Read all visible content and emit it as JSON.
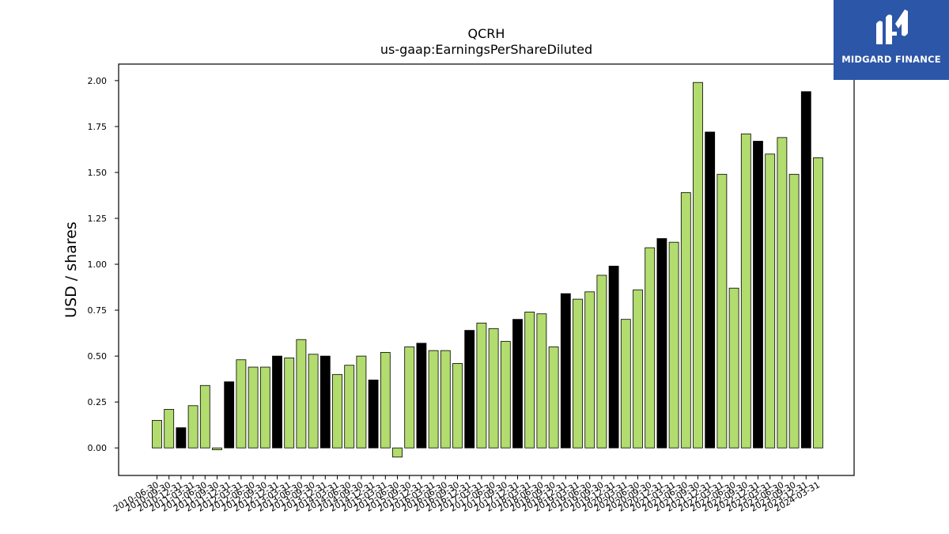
{
  "brand": {
    "name": "MIDGARD FINANCE",
    "logo_icon": "midgard-m-logo",
    "bg_color": "#2c56a8"
  },
  "colors": {
    "bar_default": "#b2dc6e",
    "bar_highlight": "#000000",
    "bar_edge": "#000000"
  },
  "chart_data": {
    "type": "bar",
    "title": "QCRH",
    "subtitle": "us-gaap:EarningsPerShareDiluted",
    "xlabel": "",
    "ylabel": "USD / shares",
    "ylim": [
      -0.15,
      2.09
    ],
    "yticks": [
      "0.00",
      "0.25",
      "0.50",
      "0.75",
      "1.00",
      "1.25",
      "1.50",
      "1.75",
      "2.00"
    ],
    "grid": false,
    "legend": "none",
    "categories": [
      "2010-06-30",
      "2010-09-30",
      "2010-12-31",
      "2011-03-31",
      "2011-06-30",
      "2011-09-30",
      "2011-12-31",
      "2012-03-31",
      "2012-06-30",
      "2012-09-30",
      "2012-12-31",
      "2013-03-31",
      "2013-06-30",
      "2013-09-30",
      "2013-12-31",
      "2014-03-31",
      "2014-06-30",
      "2014-09-30",
      "2014-12-31",
      "2015-03-31",
      "2015-06-30",
      "2015-09-30",
      "2015-12-31",
      "2016-03-31",
      "2016-06-30",
      "2016-09-30",
      "2016-12-31",
      "2017-03-31",
      "2017-06-30",
      "2017-09-30",
      "2017-12-31",
      "2018-03-31",
      "2018-06-30",
      "2018-09-30",
      "2018-12-31",
      "2019-03-31",
      "2019-06-30",
      "2019-09-30",
      "2019-12-31",
      "2020-03-31",
      "2020-06-30",
      "2020-09-30",
      "2020-12-31",
      "2021-03-31",
      "2021-06-30",
      "2021-09-30",
      "2021-12-31",
      "2022-03-31",
      "2022-06-30",
      "2022-09-30",
      "2022-12-31",
      "2023-03-31",
      "2023-06-30",
      "2023-09-30",
      "2023-12-31",
      "2024-03-31"
    ],
    "tick_labels": [
      "2010-06-30",
      "2010-09-30",
      "2010-12-31",
      "2011-03-31",
      "2011-06-30",
      "2011-09-30",
      "2011-12-31",
      "2012-03-31",
      "2012-06-30",
      "2012-09-30",
      "2012-12-31",
      "2013-03-31",
      "2013-06-30",
      "2013-09-30",
      "2013-12-31",
      "2014-03-31",
      "2014-06-30",
      "2014-09-30",
      "2014-12-31",
      "2015-03-31",
      "2015-06-30",
      "2015-09-30",
      "2015-12-31",
      "2016-03-31",
      "2016-06-30",
      "2016-09-30",
      "2016-12-31",
      "2017-03-31",
      "2017-06-30",
      "2017-09-30",
      "2017-12-31",
      "2018-03-31",
      "2018-06-30",
      "2018-09-30",
      "2018-12-31",
      "2019-03-31",
      "2019-06-30",
      "2019-09-30",
      "2019-12-31",
      "2020-03-31",
      "2020-06-30",
      "2020-09-30",
      "2020-12-31",
      "2021-03-31",
      "2021-06-30",
      "2021-09-30",
      "2021-12-31",
      "2022-03-31",
      "2022-06-30",
      "2022-09-30",
      "2022-12-31",
      "2023-03-31",
      "2023-06-30",
      "2023-09-30",
      "2023-12-31",
      "2024-03-31"
    ],
    "values": [
      0.15,
      0.21,
      0.11,
      0.23,
      0.34,
      -0.01,
      0.36,
      0.48,
      0.44,
      0.44,
      0.5,
      0.49,
      0.59,
      0.51,
      0.5,
      0.4,
      0.45,
      0.5,
      0.37,
      0.52,
      -0.05,
      0.55,
      0.57,
      0.53,
      0.53,
      0.46,
      0.64,
      0.68,
      0.65,
      0.58,
      0.7,
      0.74,
      0.73,
      0.55,
      0.84,
      0.81,
      0.85,
      0.94,
      0.99,
      0.7,
      0.86,
      1.09,
      1.14,
      1.12,
      1.39,
      1.99,
      1.72,
      1.49,
      0.87,
      1.71,
      1.67,
      1.6,
      1.69,
      1.49,
      1.94,
      1.58
    ],
    "highlighted": [
      false,
      false,
      true,
      false,
      false,
      false,
      true,
      false,
      false,
      false,
      true,
      false,
      false,
      false,
      true,
      false,
      false,
      false,
      true,
      false,
      false,
      false,
      true,
      false,
      false,
      false,
      true,
      false,
      false,
      false,
      true,
      false,
      false,
      false,
      true,
      false,
      false,
      false,
      true,
      false,
      false,
      false,
      true,
      false,
      false,
      false,
      true,
      false,
      false,
      false,
      true,
      false,
      false,
      false,
      true,
      false
    ]
  }
}
